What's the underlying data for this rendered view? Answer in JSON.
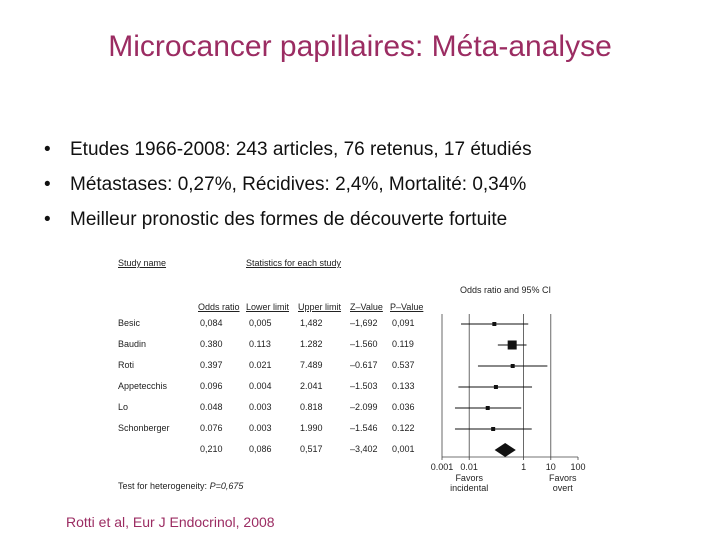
{
  "slide": {
    "title": "Microcancer papillaires: Méta-analyse",
    "bullets": [
      "Etudes 1966-2008: 243 articles, 76 retenus, 17 étudiés",
      "Métastases: 0,27%, Récidives: 2,4%, Mortalité: 0,34%",
      "Meilleur pronostic des formes de découverte fortuite"
    ],
    "bullet_symbol": "•",
    "citation": "Rotti et al, Eur J Endocrinol, 2008"
  },
  "forest": {
    "study_name_header": "Study name",
    "stats_header": "Statistics for each study",
    "plot_header": "Odds ratio and 95% CI",
    "columns": [
      "Odds ratio",
      "Lower limit",
      "Upper limit",
      "Z–Value",
      "P–Value"
    ],
    "rows": [
      {
        "study": "Besic",
        "or": "0,084",
        "lower": "0,005",
        "upper": "1,482",
        "z": "–1,692",
        "p": "0,091",
        "or_val": 0.084,
        "lo_val": 0.005,
        "hi_val": 1.482
      },
      {
        "study": "Baudin",
        "or": "0.380",
        "lower": "0.113",
        "upper": "1.282",
        "z": "–1.560",
        "p": "0.119",
        "or_val": 0.38,
        "lo_val": 0.113,
        "hi_val": 1.282
      },
      {
        "study": "Roti",
        "or": "0.397",
        "lower": "0.021",
        "upper": "7.489",
        "z": "–0.617",
        "p": "0.537",
        "or_val": 0.397,
        "lo_val": 0.021,
        "hi_val": 7.489
      },
      {
        "study": "Appetecchis",
        "or": "0.096",
        "lower": "0.004",
        "upper": "2.041",
        "z": "–1.503",
        "p": "0.133",
        "or_val": 0.096,
        "lo_val": 0.004,
        "hi_val": 2.041
      },
      {
        "study": "Lo",
        "or": "0.048",
        "lower": "0.003",
        "upper": "0.818",
        "z": "–2.099",
        "p": "0.036",
        "or_val": 0.048,
        "lo_val": 0.003,
        "hi_val": 0.818
      },
      {
        "study": "Schonberger",
        "or": "0.076",
        "lower": "0.003",
        "upper": "1.990",
        "z": "–1.546",
        "p": "0.122",
        "or_val": 0.076,
        "lo_val": 0.003,
        "hi_val": 1.99
      }
    ],
    "summary": {
      "or": "0,210",
      "lower": "0,086",
      "upper": "0,517",
      "z": "–3,402",
      "p": "0,001",
      "or_val": 0.21,
      "lo_val": 0.086,
      "hi_val": 0.517
    },
    "axis_ticks": [
      "0.001",
      "0.01",
      "1",
      "10",
      "100"
    ],
    "axis_tick_values": [
      0.001,
      0.01,
      1,
      10,
      100
    ],
    "favors_left": [
      "Favors",
      "incidental"
    ],
    "favors_right": [
      "Favors",
      "overt"
    ],
    "heterogeneity_label": "Test for heterogeneity: ",
    "heterogeneity_value": "P=0,675"
  }
}
